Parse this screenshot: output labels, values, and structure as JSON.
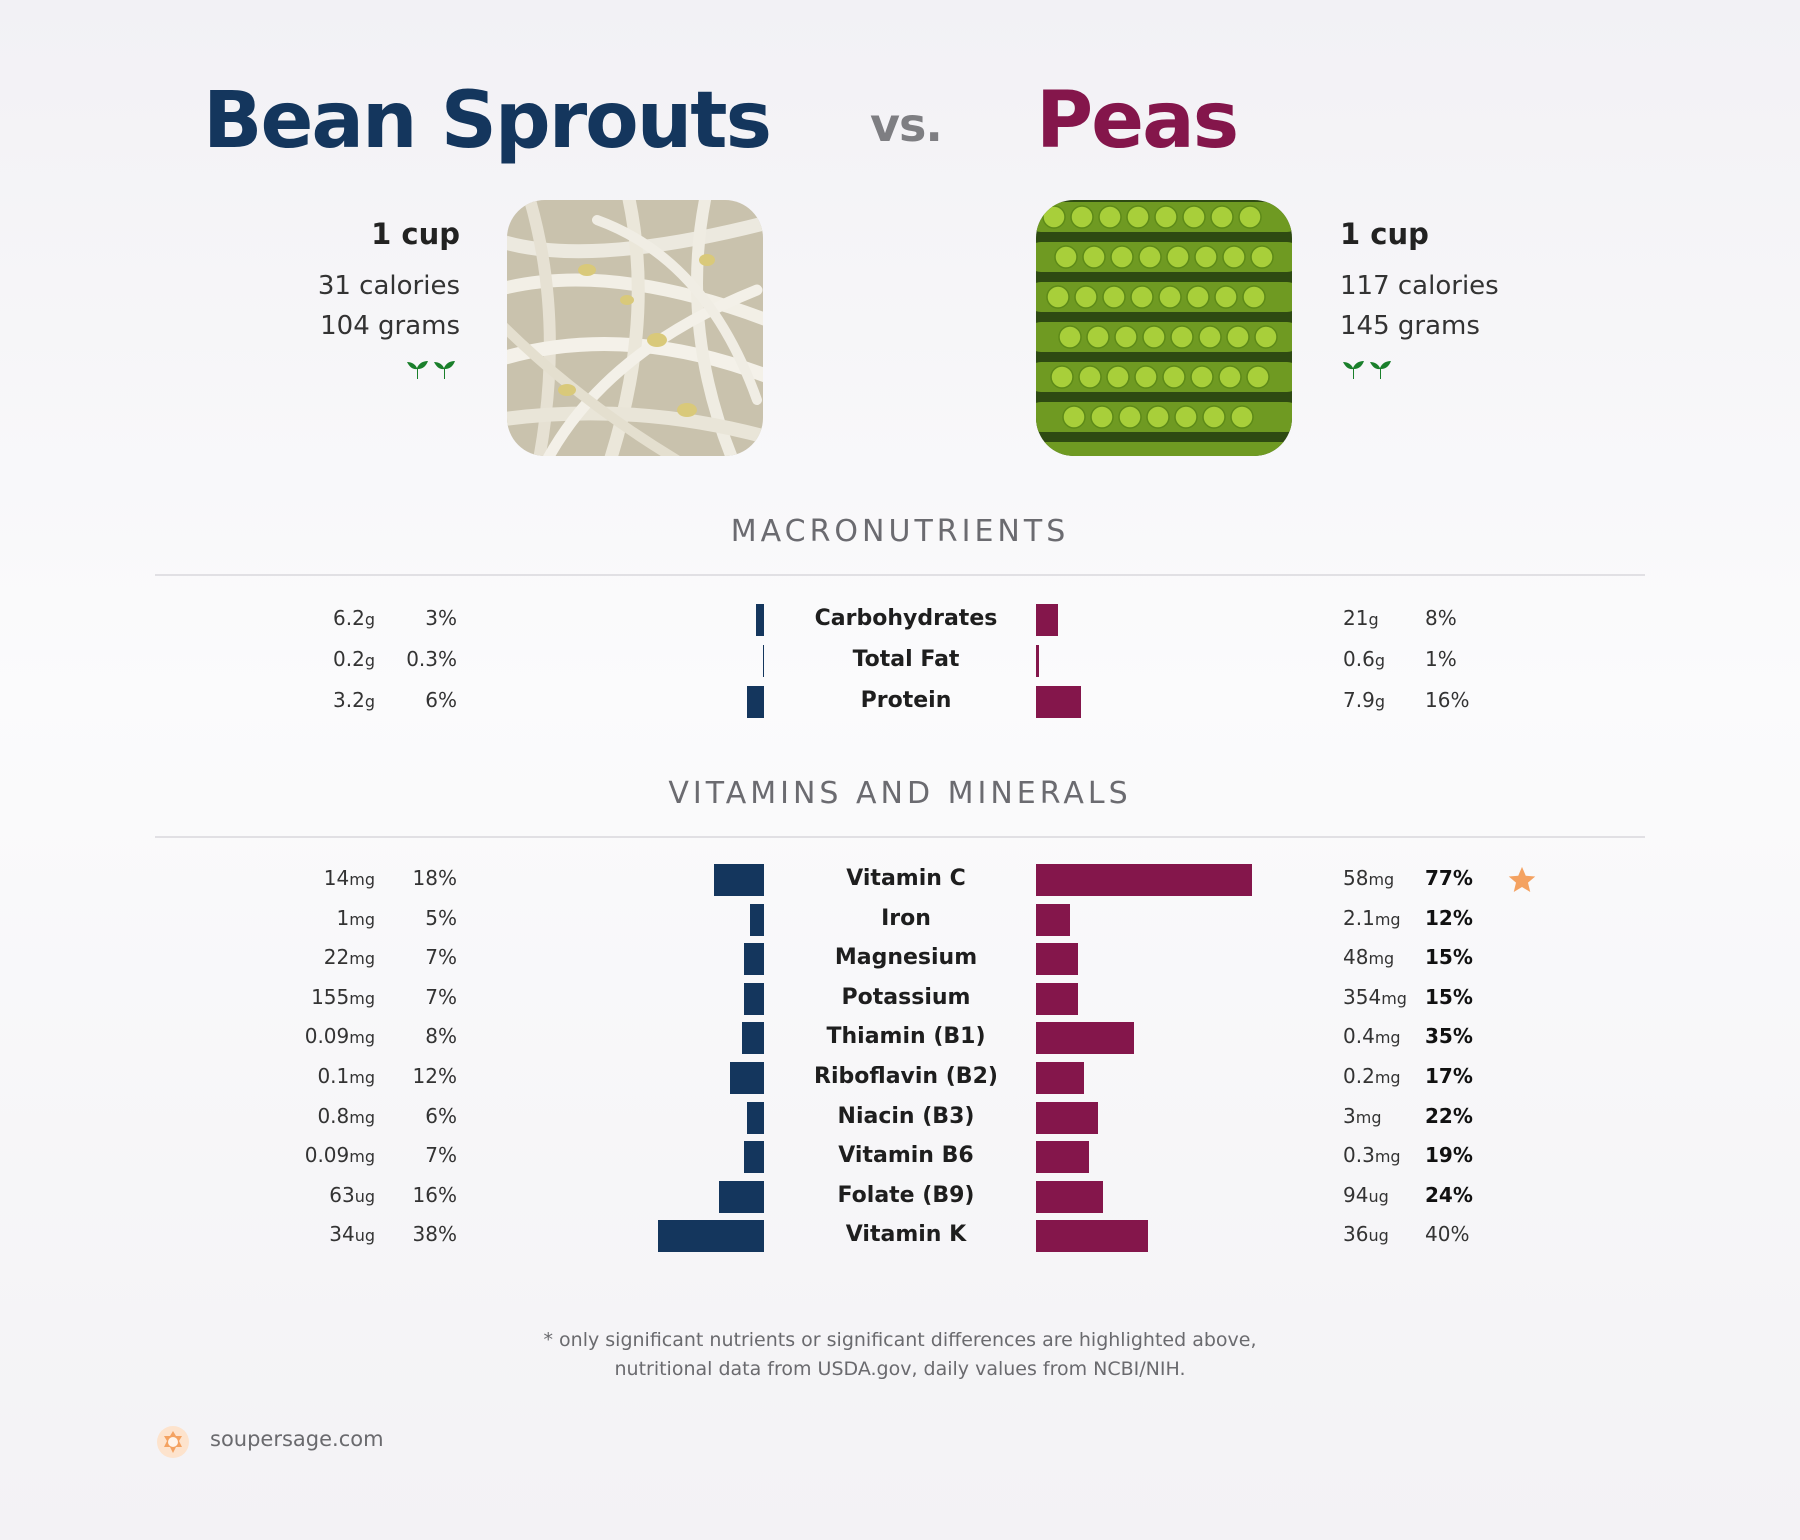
{
  "header": {
    "left_name": "Bean Sprouts",
    "vs": "vs.",
    "right_name": "Peas"
  },
  "left_food": {
    "serving": "1 cup",
    "calories": "31 calories",
    "weight": "104 grams",
    "icon": "sprout-icon"
  },
  "right_food": {
    "serving": "1 cup",
    "calories": "117 calories",
    "weight": "145 grams",
    "icon": "sprout-icon"
  },
  "colors": {
    "left": "#14365d",
    "right": "#84164b",
    "star": "#f4a261"
  },
  "chart_data": [
    {
      "type": "bar",
      "title": "MACRONUTRIENTS",
      "categories": [
        "Carbohydrates",
        "Total Fat",
        "Protein"
      ],
      "series": [
        {
          "name": "Bean Sprouts",
          "amounts": [
            "6.2",
            "0.2",
            "3.2"
          ],
          "units": [
            "g",
            "g",
            "g"
          ],
          "values": [
            3,
            0.3,
            6
          ],
          "labels": [
            "3%",
            "0.3%",
            "6%"
          ]
        },
        {
          "name": "Peas",
          "amounts": [
            "21",
            "0.6",
            "7.9"
          ],
          "units": [
            "g",
            "g",
            "g"
          ],
          "values": [
            8,
            1,
            16
          ],
          "labels": [
            "8%",
            "1%",
            "16%"
          ]
        }
      ],
      "right_bold": [
        false,
        false,
        false
      ],
      "star": [
        false,
        false,
        false
      ]
    },
    {
      "type": "bar",
      "title": "VITAMINS AND MINERALS",
      "categories": [
        "Vitamin C",
        "Iron",
        "Magnesium",
        "Potassium",
        "Thiamin (B1)",
        "Riboflavin (B2)",
        "Niacin (B3)",
        "Vitamin B6",
        "Folate (B9)",
        "Vitamin K"
      ],
      "series": [
        {
          "name": "Bean Sprouts",
          "amounts": [
            "14",
            "1",
            "22",
            "155",
            "0.09",
            "0.1",
            "0.8",
            "0.09",
            "63",
            "34"
          ],
          "units": [
            "mg",
            "mg",
            "mg",
            "mg",
            "mg",
            "mg",
            "mg",
            "mg",
            "ug",
            "ug"
          ],
          "values": [
            18,
            5,
            7,
            7,
            8,
            12,
            6,
            7,
            16,
            38
          ],
          "labels": [
            "18%",
            "5%",
            "7%",
            "7%",
            "8%",
            "12%",
            "6%",
            "7%",
            "16%",
            "38%"
          ]
        },
        {
          "name": "Peas",
          "amounts": [
            "58",
            "2.1",
            "48",
            "354",
            "0.4",
            "0.2",
            "3",
            "0.3",
            "94",
            "36"
          ],
          "units": [
            "mg",
            "mg",
            "mg",
            "mg",
            "mg",
            "mg",
            "mg",
            "mg",
            "ug",
            "ug"
          ],
          "values": [
            77,
            12,
            15,
            15,
            35,
            17,
            22,
            19,
            24,
            40
          ],
          "labels": [
            "77%",
            "12%",
            "15%",
            "15%",
            "35%",
            "17%",
            "22%",
            "19%",
            "24%",
            "40%"
          ]
        }
      ],
      "right_bold": [
        true,
        true,
        true,
        true,
        true,
        true,
        true,
        true,
        true,
        false
      ],
      "star": [
        true,
        false,
        false,
        false,
        false,
        false,
        false,
        false,
        false,
        false
      ]
    }
  ],
  "footnote": {
    "line1": "* only significant nutrients or significant differences are highlighted above,",
    "line2": "nutritional data from USDA.gov, daily values from NCBI/NIH."
  },
  "brand": {
    "text": "soupersage.com",
    "icon": "soupersage-logo-icon"
  }
}
